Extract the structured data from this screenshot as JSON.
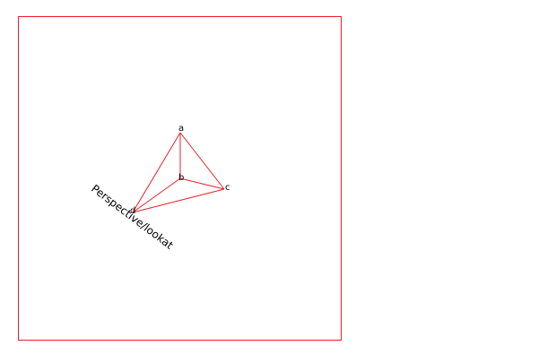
{
  "colors": {
    "frame": "#e8202a",
    "edges": "#e8202a",
    "text": "#000000",
    "background": "#ffffff"
  },
  "figure": {
    "caption": "Perspective/lookat",
    "vertex_labels": {
      "a": "a",
      "b": "b",
      "c": "c",
      "d": "d"
    }
  }
}
